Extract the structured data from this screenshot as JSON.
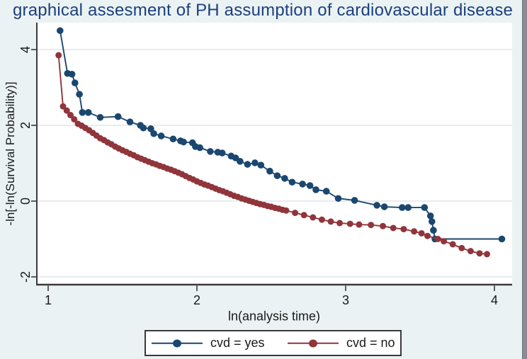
{
  "title": "graphical assesment of PH assumption of cardiovascular disease",
  "colors": {
    "background": "#eaf2f3",
    "plot_bg": "#ffffff",
    "grid": "#dde7ea",
    "axis": "#3a3a3a",
    "text": "#1a1a1a",
    "title_text": "#1c3f7e",
    "navy": "#1a476f",
    "maroon": "#90353b",
    "legend_bg": "#ffffff",
    "legend_border": "#3a3a3a",
    "scrollbar": "#868d94"
  },
  "legend": {
    "items": [
      {
        "label": "cvd = yes",
        "color": "#1a476f"
      },
      {
        "label": "cvd = no",
        "color": "#90353b"
      }
    ]
  },
  "chart_data": {
    "type": "line",
    "title": "graphical assesment of PH assumption of cardiovascular disease",
    "xlabel": "ln(analysis time)",
    "ylabel": "-ln[-ln(Survival Probability)]",
    "x_ticks": [
      1,
      2,
      3,
      4
    ],
    "y_ticks": [
      4,
      2,
      0,
      -2
    ],
    "xlim": [
      0.92,
      4.12
    ],
    "ylim": [
      -2.2,
      4.71
    ],
    "grid": "horizontal",
    "legend_position": "bottom-center",
    "marker": "circle",
    "series": [
      {
        "name": "cvd = yes",
        "color": "#1a476f",
        "points": [
          [
            1.08,
            4.5
          ],
          [
            1.13,
            3.37
          ],
          [
            1.16,
            3.35
          ],
          [
            1.18,
            3.12
          ],
          [
            1.21,
            2.82
          ],
          [
            1.23,
            2.34
          ],
          [
            1.27,
            2.34
          ],
          [
            1.35,
            2.21
          ],
          [
            1.47,
            2.23
          ],
          [
            1.55,
            2.09
          ],
          [
            1.62,
            2.0
          ],
          [
            1.64,
            1.93
          ],
          [
            1.69,
            1.91
          ],
          [
            1.71,
            1.78
          ],
          [
            1.76,
            1.72
          ],
          [
            1.84,
            1.64
          ],
          [
            1.89,
            1.59
          ],
          [
            1.91,
            1.56
          ],
          [
            1.97,
            1.54
          ],
          [
            1.99,
            1.44
          ],
          [
            2.02,
            1.41
          ],
          [
            2.09,
            1.31
          ],
          [
            2.14,
            1.29
          ],
          [
            2.17,
            1.27
          ],
          [
            2.23,
            1.19
          ],
          [
            2.26,
            1.14
          ],
          [
            2.29,
            1.05
          ],
          [
            2.34,
            0.97
          ],
          [
            2.39,
            1.01
          ],
          [
            2.43,
            0.95
          ],
          [
            2.49,
            0.79
          ],
          [
            2.54,
            0.67
          ],
          [
            2.59,
            0.6
          ],
          [
            2.64,
            0.5
          ],
          [
            2.71,
            0.45
          ],
          [
            2.76,
            0.41
          ],
          [
            2.8,
            0.3
          ],
          [
            2.87,
            0.26
          ],
          [
            2.95,
            0.07
          ],
          [
            3.06,
            0.02
          ],
          [
            3.21,
            -0.11
          ],
          [
            3.26,
            -0.15
          ],
          [
            3.38,
            -0.17
          ],
          [
            3.42,
            -0.17
          ],
          [
            3.53,
            -0.17
          ],
          [
            3.57,
            -0.39
          ],
          [
            3.58,
            -0.54
          ],
          [
            3.59,
            -0.77
          ],
          [
            3.6,
            -1.0
          ],
          [
            4.05,
            -1.0
          ]
        ]
      },
      {
        "name": "cvd = no",
        "color": "#90353b",
        "points": [
          [
            1.07,
            3.85
          ],
          [
            1.1,
            2.5
          ],
          [
            1.125,
            2.39
          ],
          [
            1.15,
            2.27
          ],
          [
            1.175,
            2.16
          ],
          [
            1.2,
            2.04
          ],
          [
            1.225,
            1.99
          ],
          [
            1.25,
            1.93
          ],
          [
            1.275,
            1.87
          ],
          [
            1.3,
            1.8
          ],
          [
            1.325,
            1.73
          ],
          [
            1.35,
            1.66
          ],
          [
            1.375,
            1.61
          ],
          [
            1.4,
            1.55
          ],
          [
            1.425,
            1.5
          ],
          [
            1.45,
            1.44
          ],
          [
            1.475,
            1.39
          ],
          [
            1.5,
            1.34
          ],
          [
            1.525,
            1.3
          ],
          [
            1.55,
            1.25
          ],
          [
            1.575,
            1.21
          ],
          [
            1.6,
            1.16
          ],
          [
            1.625,
            1.12
          ],
          [
            1.65,
            1.08
          ],
          [
            1.675,
            1.04
          ],
          [
            1.7,
            1.0
          ],
          [
            1.725,
            0.97
          ],
          [
            1.75,
            0.93
          ],
          [
            1.775,
            0.9
          ],
          [
            1.8,
            0.86
          ],
          [
            1.825,
            0.83
          ],
          [
            1.85,
            0.79
          ],
          [
            1.875,
            0.75
          ],
          [
            1.9,
            0.71
          ],
          [
            1.925,
            0.66
          ],
          [
            1.95,
            0.61
          ],
          [
            1.975,
            0.57
          ],
          [
            2.0,
            0.52
          ],
          [
            2.025,
            0.48
          ],
          [
            2.05,
            0.44
          ],
          [
            2.075,
            0.41
          ],
          [
            2.1,
            0.37
          ],
          [
            2.125,
            0.33
          ],
          [
            2.15,
            0.29
          ],
          [
            2.175,
            0.26
          ],
          [
            2.2,
            0.22
          ],
          [
            2.225,
            0.18
          ],
          [
            2.25,
            0.14
          ],
          [
            2.275,
            0.11
          ],
          [
            2.3,
            0.07
          ],
          [
            2.325,
            0.04
          ],
          [
            2.35,
            0.01
          ],
          [
            2.375,
            -0.02
          ],
          [
            2.4,
            -0.05
          ],
          [
            2.425,
            -0.08
          ],
          [
            2.45,
            -0.1
          ],
          [
            2.475,
            -0.13
          ],
          [
            2.5,
            -0.15
          ],
          [
            2.525,
            -0.18
          ],
          [
            2.55,
            -0.2
          ],
          [
            2.575,
            -0.23
          ],
          [
            2.6,
            -0.25
          ],
          [
            2.66,
            -0.31
          ],
          [
            2.72,
            -0.37
          ],
          [
            2.78,
            -0.43
          ],
          [
            2.84,
            -0.49
          ],
          [
            2.9,
            -0.54
          ],
          [
            2.96,
            -0.58
          ],
          [
            3.03,
            -0.6
          ],
          [
            3.09,
            -0.62
          ],
          [
            3.17,
            -0.63
          ],
          [
            3.25,
            -0.66
          ],
          [
            3.32,
            -0.71
          ],
          [
            3.39,
            -0.74
          ],
          [
            3.46,
            -0.8
          ],
          [
            3.51,
            -0.85
          ],
          [
            3.55,
            -0.92
          ],
          [
            3.62,
            -1.0
          ],
          [
            3.66,
            -1.06
          ],
          [
            3.72,
            -1.14
          ],
          [
            3.78,
            -1.24
          ],
          [
            3.84,
            -1.32
          ],
          [
            3.9,
            -1.38
          ],
          [
            3.95,
            -1.4
          ]
        ]
      }
    ]
  }
}
